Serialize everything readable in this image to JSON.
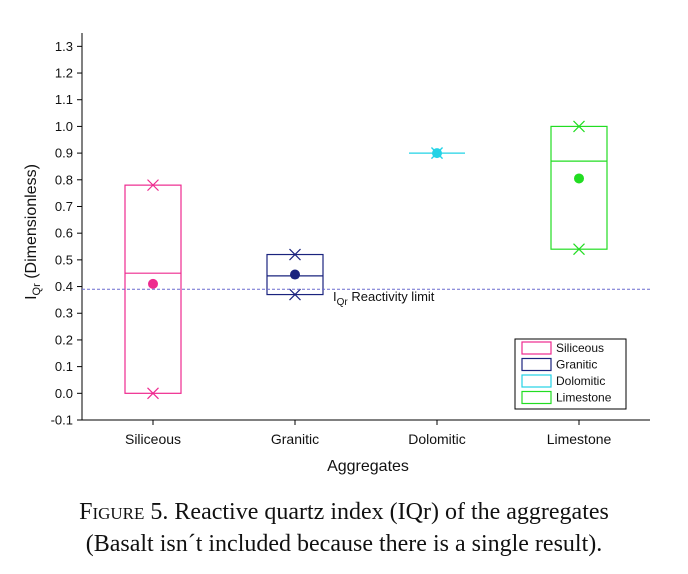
{
  "chart_data": {
    "type": "box",
    "ylabel_main": "I",
    "ylabel_sub": "Qr",
    "ylabel_rest": " (Dimensionless)",
    "xlabel": "Aggregates",
    "ylim": [
      -0.1,
      1.35
    ],
    "yticks": [
      -0.1,
      0.0,
      0.1,
      0.2,
      0.3,
      0.4,
      0.5,
      0.6,
      0.7,
      0.8,
      0.9,
      1.0,
      1.1,
      1.2,
      1.3
    ],
    "ytick_labels": [
      "-0.1",
      "0.0",
      "0.1",
      "0.2",
      "0.3",
      "0.4",
      "0.5",
      "0.6",
      "0.7",
      "0.8",
      "0.9",
      "1.0",
      "1.1",
      "1.2",
      "1.3"
    ],
    "categories": [
      "Siliceous",
      "Granitic",
      "Dolomitic",
      "Limestone"
    ],
    "series": [
      {
        "name": "Siliceous",
        "color": "#ee2a8f",
        "box_low": 0.0,
        "box_high": 0.78,
        "median": 0.45,
        "mean": 0.41,
        "min": 0.0,
        "max": 0.78
      },
      {
        "name": "Granitic",
        "color": "#1a237e",
        "box_low": 0.37,
        "box_high": 0.52,
        "median": 0.44,
        "mean": 0.445,
        "min": 0.37,
        "max": 0.52
      },
      {
        "name": "Dolomitic",
        "color": "#22d3e6",
        "box_low": 0.9,
        "box_high": 0.9,
        "median": 0.9,
        "mean": 0.9,
        "min": 0.9,
        "max": 0.9
      },
      {
        "name": "Limestone",
        "color": "#22dd22",
        "box_low": 0.54,
        "box_high": 1.0,
        "median": 0.87,
        "mean": 0.805,
        "min": 0.54,
        "max": 1.0
      }
    ],
    "reference_line": {
      "y": 0.39,
      "color": "#6a6acf"
    },
    "annotation": {
      "main": "I",
      "sub": "Qr",
      "rest": " Reactivity limit"
    },
    "legend_position": "bottom-right"
  },
  "caption": {
    "figure_word": "Figure 5.",
    "line1_rest": " Reactive quartz index (IQr) of the aggregates",
    "line2": "(Basalt isn´t included because there is a single result)."
  }
}
